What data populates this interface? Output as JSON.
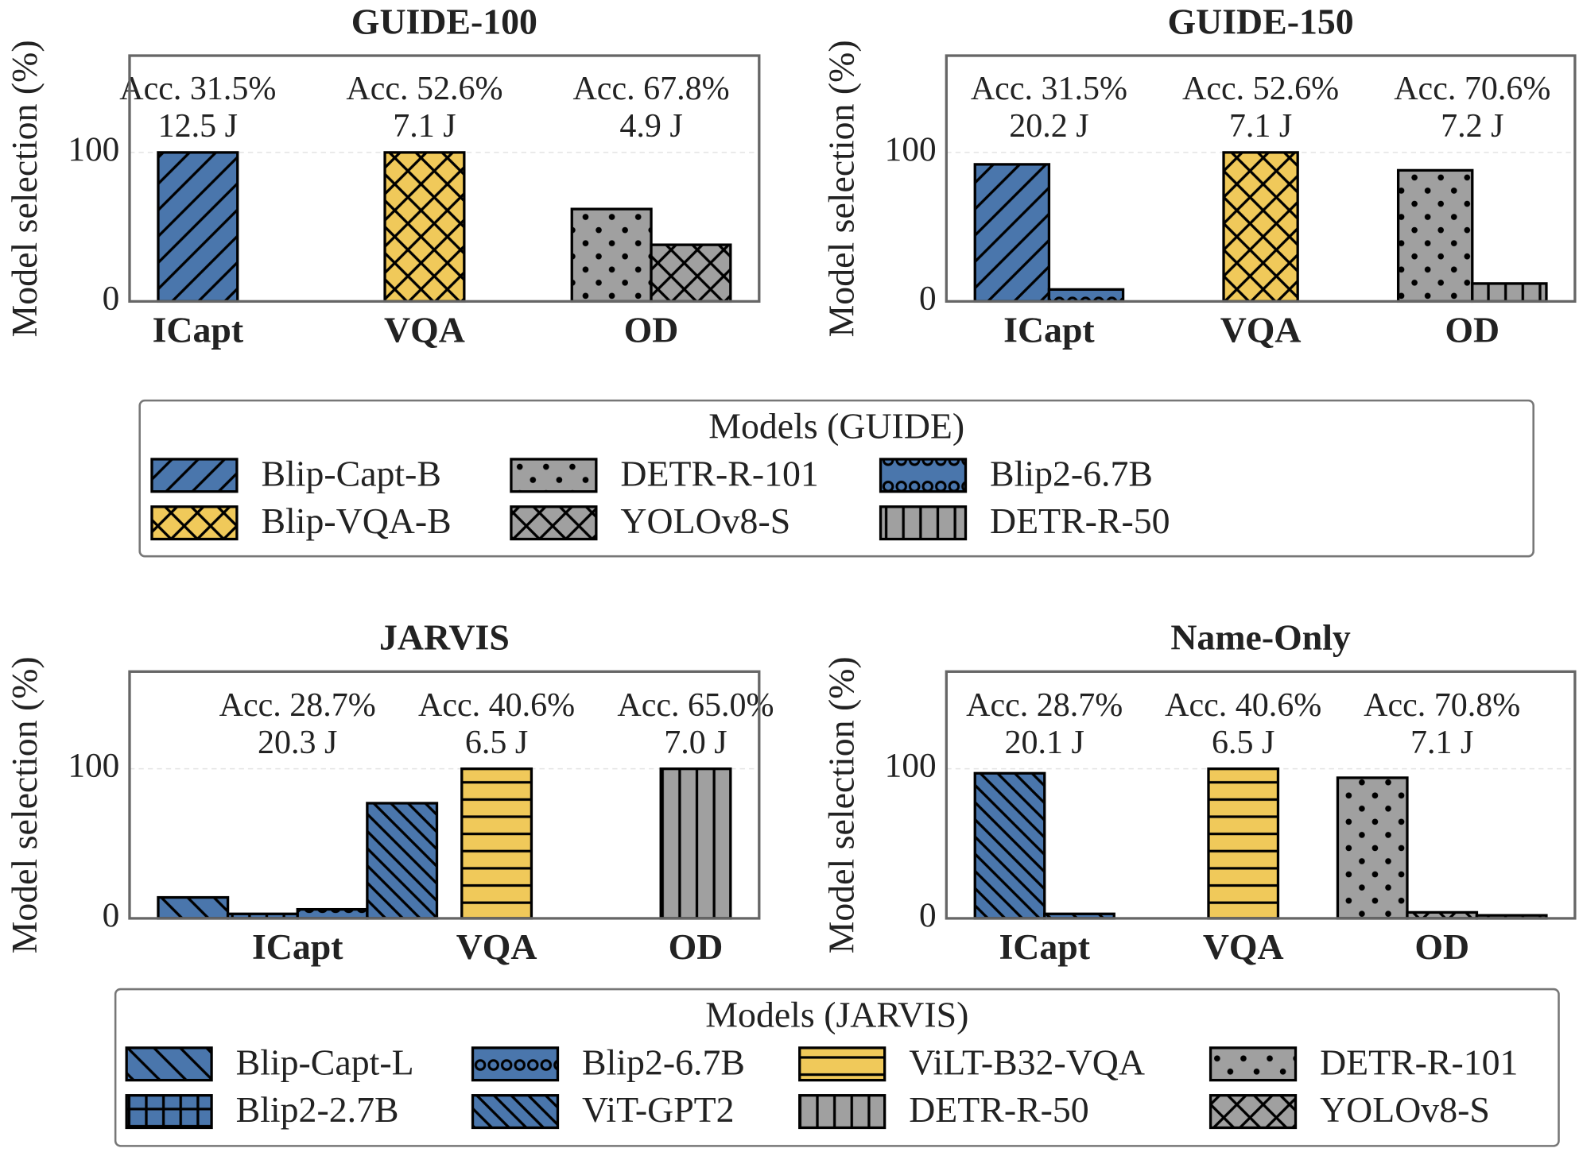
{
  "chart_data": [
    {
      "type": "bar",
      "legend_title": "Models (GUIDE)",
      "series": [
        {
          "name": "Blip-Capt-B",
          "color": "#4a76ac",
          "hatch": "/"
        },
        {
          "name": "Blip-VQA-B",
          "color": "#f0c95a",
          "hatch": "x"
        },
        {
          "name": "DETR-R-101",
          "color": "#a0a0a0",
          "hatch": "."
        },
        {
          "name": "YOLOv8-S",
          "color": "#a0a0a0",
          "hatch": "x"
        },
        {
          "name": "Blip2-6.7B",
          "color": "#4a76ac",
          "hatch": "o"
        },
        {
          "name": "DETR-R-50",
          "color": "#a0a0a0",
          "hatch": "|"
        }
      ],
      "panels": [
        {
          "title": "GUIDE-100",
          "ylabel": "Model selection (%)",
          "ylim": [
            0,
            165
          ],
          "yticks": [
            0,
            100
          ],
          "grid": true,
          "groups": [
            {
              "category": "ICapt",
              "annotation": [
                "Acc. 31.5%",
                "12.5 J"
              ],
              "bars": [
                {
                  "series": "Blip-Capt-B",
                  "value": 100
                }
              ]
            },
            {
              "category": "VQA",
              "annotation": [
                "Acc. 52.6%",
                "7.1 J"
              ],
              "bars": [
                {
                  "series": "Blip-VQA-B",
                  "value": 100
                }
              ]
            },
            {
              "category": "OD",
              "annotation": [
                "Acc. 67.8%",
                "4.9 J"
              ],
              "bars": [
                {
                  "series": "DETR-R-101",
                  "value": 62
                },
                {
                  "series": "YOLOv8-S",
                  "value": 38
                }
              ]
            }
          ]
        },
        {
          "title": "GUIDE-150",
          "ylabel": "Model selection (%)",
          "ylim": [
            0,
            165
          ],
          "yticks": [
            0,
            100
          ],
          "grid": true,
          "groups": [
            {
              "category": "ICapt",
              "annotation": [
                "Acc. 31.5%",
                "20.2 J"
              ],
              "bars": [
                {
                  "series": "Blip-Capt-B",
                  "value": 92
                },
                {
                  "series": "Blip2-6.7B",
                  "value": 8
                }
              ]
            },
            {
              "category": "VQA",
              "annotation": [
                "Acc. 52.6%",
                "7.1 J"
              ],
              "bars": [
                {
                  "series": "Blip-VQA-B",
                  "value": 100
                }
              ]
            },
            {
              "category": "OD",
              "annotation": [
                "Acc. 70.6%",
                "7.2 J"
              ],
              "bars": [
                {
                  "series": "DETR-R-101",
                  "value": 88
                },
                {
                  "series": "DETR-R-50",
                  "value": 12
                }
              ]
            }
          ]
        }
      ]
    },
    {
      "type": "bar",
      "legend_title": "Models (JARVIS)",
      "series": [
        {
          "name": "Blip-Capt-L",
          "color": "#4a76ac",
          "hatch": "\\"
        },
        {
          "name": "Blip2-2.7B",
          "color": "#4a76ac",
          "hatch": "+"
        },
        {
          "name": "Blip2-6.7B",
          "color": "#4a76ac",
          "hatch": "o"
        },
        {
          "name": "ViT-GPT2",
          "color": "#4a76ac",
          "hatch": "\\\\"
        },
        {
          "name": "ViLT-B32-VQA",
          "color": "#f0c95a",
          "hatch": "-"
        },
        {
          "name": "DETR-R-50",
          "color": "#a0a0a0",
          "hatch": "|"
        },
        {
          "name": "DETR-R-101",
          "color": "#a0a0a0",
          "hatch": "."
        },
        {
          "name": "YOLOv8-S",
          "color": "#a0a0a0",
          "hatch": "x"
        }
      ],
      "panels": [
        {
          "title": "JARVIS",
          "ylabel": "Model selection (%)",
          "ylim": [
            0,
            165
          ],
          "yticks": [
            0,
            100
          ],
          "grid": true,
          "groups": [
            {
              "category": "ICapt",
              "annotation": [
                "Acc. 28.7%",
                "20.3 J"
              ],
              "bars": [
                {
                  "series": "Blip-Capt-L",
                  "value": 14
                },
                {
                  "series": "Blip2-2.7B",
                  "value": 3
                },
                {
                  "series": "Blip2-6.7B",
                  "value": 6
                },
                {
                  "series": "ViT-GPT2",
                  "value": 77
                }
              ]
            },
            {
              "category": "VQA",
              "annotation": [
                "Acc. 40.6%",
                "6.5 J"
              ],
              "bars": [
                {
                  "series": "ViLT-B32-VQA",
                  "value": 100
                }
              ]
            },
            {
              "category": "OD",
              "annotation": [
                "Acc. 65.0%",
                "7.0 J"
              ],
              "bars": [
                {
                  "series": "DETR-R-50",
                  "value": 100
                }
              ]
            }
          ]
        },
        {
          "title": "Name-Only",
          "ylabel": "Model selection (%)",
          "ylim": [
            0,
            165
          ],
          "yticks": [
            0,
            100
          ],
          "grid": true,
          "groups": [
            {
              "category": "ICapt",
              "annotation": [
                "Acc. 28.7%",
                "20.1 J"
              ],
              "bars": [
                {
                  "series": "ViT-GPT2",
                  "value": 97
                },
                {
                  "series": "Blip-Capt-L",
                  "value": 3
                }
              ]
            },
            {
              "category": "VQA",
              "annotation": [
                "Acc. 40.6%",
                "6.5 J"
              ],
              "bars": [
                {
                  "series": "ViLT-B32-VQA",
                  "value": 100
                }
              ]
            },
            {
              "category": "OD",
              "annotation": [
                "Acc. 70.8%",
                "7.1 J"
              ],
              "bars": [
                {
                  "series": "DETR-R-101",
                  "value": 94
                },
                {
                  "series": "YOLOv8-S",
                  "value": 4
                },
                {
                  "series": "DETR-R-50",
                  "value": 2
                }
              ]
            }
          ]
        }
      ]
    }
  ]
}
